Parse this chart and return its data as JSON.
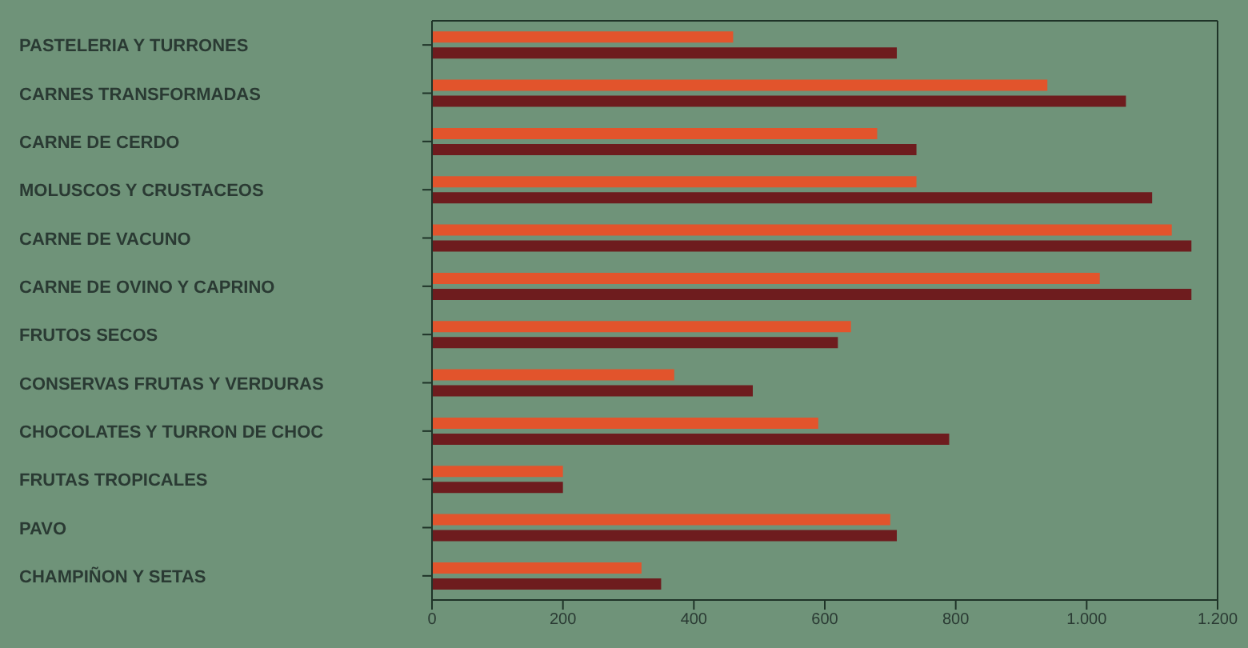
{
  "chart_data": {
    "type": "bar",
    "orientation": "horizontal",
    "categories": [
      "PASTELERIA Y TURRONES",
      "CARNES TRANSFORMADAS",
      "CARNE DE CERDO",
      "MOLUSCOS Y CRUSTACEOS",
      "CARNE DE VACUNO",
      "CARNE DE OVINO Y CAPRINO",
      "FRUTOS SECOS",
      "CONSERVAS FRUTAS Y VERDURAS",
      "CHOCOLATES Y TURRON DE CHOC",
      "FRUTAS TROPICALES",
      "PAVO",
      "CHAMPIÑON Y SETAS"
    ],
    "series": [
      {
        "color": "#e2542c",
        "values": [
          460,
          940,
          680,
          740,
          1130,
          1020,
          640,
          370,
          590,
          200,
          700,
          320
        ]
      },
      {
        "color": "#6e1c1e",
        "values": [
          710,
          1060,
          740,
          1100,
          1160,
          1160,
          620,
          490,
          790,
          200,
          710,
          350
        ]
      }
    ],
    "xlim": [
      0,
      1200
    ],
    "xticks": [
      0,
      200,
      400,
      600,
      800,
      {
        "value": 1000,
        "label": "1.000"
      },
      {
        "value": 1200,
        "label": "1.200"
      }
    ],
    "grid": false,
    "legend": false
  }
}
